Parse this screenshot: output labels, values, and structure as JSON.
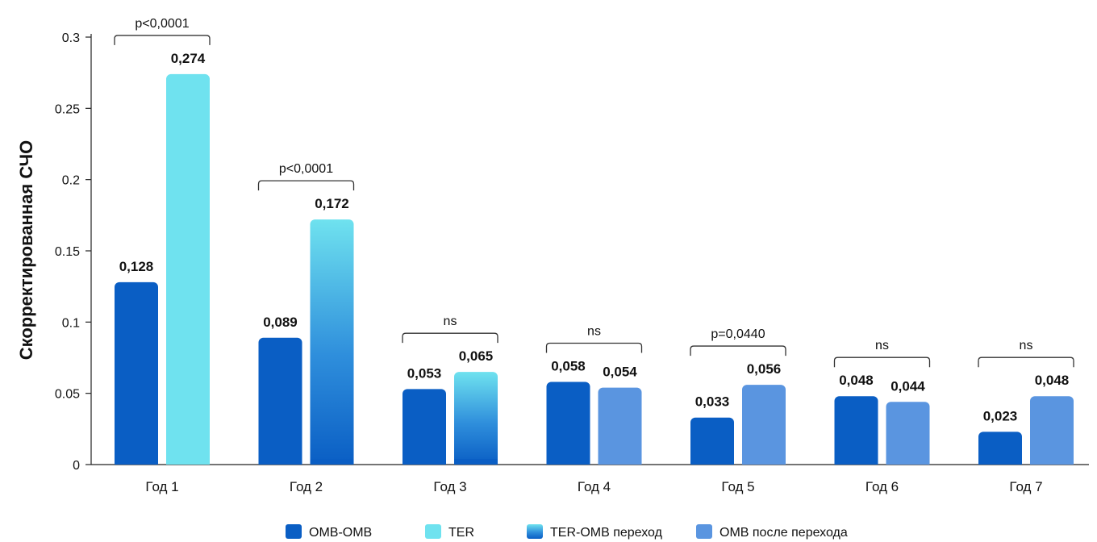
{
  "chart_data": {
    "type": "bar",
    "ylabel": "Скорректированная СЧО",
    "xlabel": "",
    "ylim": [
      0,
      0.3
    ],
    "yticks": [
      "0",
      "0.05",
      "0.1",
      "0.15",
      "0.2",
      "0.25",
      "0.3"
    ],
    "grid": false,
    "legend_position": "bottom",
    "categories": [
      "Год 1",
      "Год 2",
      "Год 3",
      "Год 4",
      "Год 5",
      "Год 6",
      "Год 7"
    ],
    "legend": [
      {
        "key": "omb",
        "label": "OMB-OMB",
        "color": "#0a5ec4"
      },
      {
        "key": "ter",
        "label": "TER",
        "color": "#6fe2ef"
      },
      {
        "key": "ter_omb",
        "label": "TER-OMB переход",
        "color": "#2f8fdc"
      },
      {
        "key": "omb_after",
        "label": "OMB после перехода",
        "color": "#5a95e0"
      }
    ],
    "groups": [
      {
        "category": "Год 1",
        "left": {
          "value": 0.128,
          "label": "0,128",
          "series": "omb"
        },
        "right": {
          "value": 0.274,
          "label": "0,274",
          "series": "ter"
        },
        "significance": "p<0,0001"
      },
      {
        "category": "Год 2",
        "left": {
          "value": 0.089,
          "label": "0,089",
          "series": "omb"
        },
        "right": {
          "value": 0.172,
          "label": "0,172",
          "series": "ter_omb"
        },
        "significance": "p<0,0001"
      },
      {
        "category": "Год 3",
        "left": {
          "value": 0.053,
          "label": "0,053",
          "series": "omb"
        },
        "right": {
          "value": 0.065,
          "label": "0,065",
          "series": "ter_omb"
        },
        "significance": "ns"
      },
      {
        "category": "Год 4",
        "left": {
          "value": 0.058,
          "label": "0,058",
          "series": "omb"
        },
        "right": {
          "value": 0.054,
          "label": "0,054",
          "series": "omb_after"
        },
        "significance": "ns"
      },
      {
        "category": "Год 5",
        "left": {
          "value": 0.033,
          "label": "0,033",
          "series": "omb"
        },
        "right": {
          "value": 0.056,
          "label": "0,056",
          "series": "omb_after"
        },
        "significance": "p=0,0440"
      },
      {
        "category": "Год 6",
        "left": {
          "value": 0.048,
          "label": "0,048",
          "series": "omb"
        },
        "right": {
          "value": 0.044,
          "label": "0,044",
          "series": "omb_after"
        },
        "significance": "ns"
      },
      {
        "category": "Год 7",
        "left": {
          "value": 0.023,
          "label": "0,023",
          "series": "omb"
        },
        "right": {
          "value": 0.048,
          "label": "0,048",
          "series": "omb_after"
        },
        "significance": "ns"
      }
    ]
  }
}
